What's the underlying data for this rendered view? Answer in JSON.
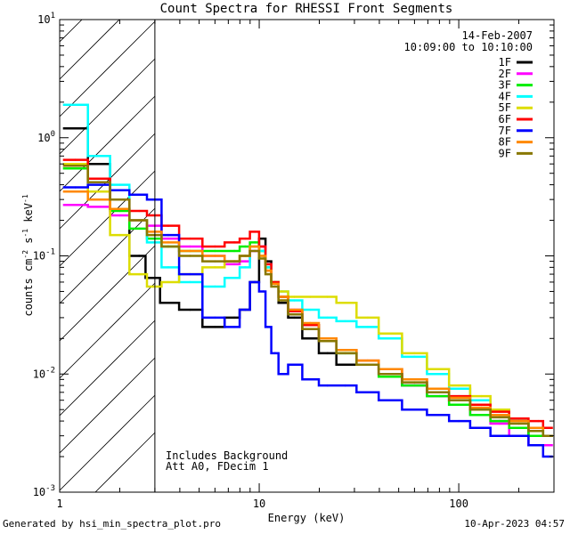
{
  "chart_data": {
    "type": "line",
    "title": "Count Spectra for RHESSI Front Segments",
    "xlabel": "Energy (keV)",
    "ylabel": "counts cm",
    "ylabel_parts": [
      "counts cm",
      "-2",
      " s",
      "-1",
      " keV",
      "-1"
    ],
    "x_scale": "log",
    "y_scale": "log",
    "xlim": [
      1,
      300
    ],
    "ylim": [
      0.001,
      10
    ],
    "x_ticks": [
      {
        "value": 1,
        "label": "1"
      },
      {
        "value": 10,
        "label": "10"
      },
      {
        "value": 100,
        "label": "100"
      }
    ],
    "y_ticks": [
      {
        "value": 0.001,
        "base": "10",
        "exp": "-3"
      },
      {
        "value": 0.01,
        "base": "10",
        "exp": "-2"
      },
      {
        "value": 0.1,
        "base": "10",
        "exp": "-1"
      },
      {
        "value": 1,
        "base": "10",
        "exp": "0"
      },
      {
        "value": 10,
        "base": "10",
        "exp": "1"
      }
    ],
    "date": "14-Feb-2007",
    "time_range": "10:09:00 to 10:10:00",
    "annotations": [
      "Includes Background",
      "Att A0, FDecim 1"
    ],
    "excluded_region_max_kev": 3,
    "series": [
      {
        "name": "1F",
        "color": "#000000",
        "x": [
          1.2,
          1.6,
          2,
          2.5,
          2.9,
          3.5,
          4.5,
          6,
          7.5,
          8.5,
          9.5,
          10.5,
          11,
          12,
          13,
          15,
          18,
          22,
          27,
          35,
          45,
          60,
          80,
          100,
          130,
          160,
          200,
          250,
          280
        ],
        "y": [
          1.2,
          0.6,
          0.25,
          0.1,
          0.065,
          0.04,
          0.035,
          0.025,
          0.03,
          0.035,
          0.06,
          0.14,
          0.09,
          0.06,
          0.04,
          0.03,
          0.02,
          0.015,
          0.012,
          0.012,
          0.01,
          0.008,
          0.007,
          0.006,
          0.005,
          0.004,
          0.004,
          0.003,
          0.003
        ]
      },
      {
        "name": "2F",
        "color": "#ff00ff",
        "x": [
          1.2,
          1.6,
          2,
          2.5,
          3,
          3.5,
          4.5,
          6,
          7.5,
          8.5,
          9.5,
          10.5,
          11,
          12,
          13,
          15,
          18,
          22,
          27,
          35,
          45,
          60,
          80,
          100,
          130,
          160,
          200,
          250,
          280
        ],
        "y": [
          0.27,
          0.26,
          0.22,
          0.2,
          0.18,
          0.14,
          0.12,
          0.1,
          0.085,
          0.09,
          0.11,
          0.12,
          0.085,
          0.06,
          0.045,
          0.035,
          0.026,
          0.02,
          0.016,
          0.012,
          0.01,
          0.008,
          0.0065,
          0.0055,
          0.0045,
          0.0038,
          0.003,
          0.0025,
          0.0025
        ]
      },
      {
        "name": "3F",
        "color": "#00ee00",
        "x": [
          1.2,
          1.6,
          2,
          2.5,
          3,
          3.5,
          4.5,
          6,
          7.5,
          8.5,
          9.5,
          10.5,
          11,
          12,
          13,
          15,
          18,
          22,
          27,
          35,
          45,
          60,
          80,
          100,
          130,
          160,
          200,
          250,
          280
        ],
        "y": [
          0.55,
          0.35,
          0.24,
          0.17,
          0.14,
          0.12,
          0.11,
          0.11,
          0.11,
          0.12,
          0.13,
          0.11,
          0.08,
          0.06,
          0.045,
          0.034,
          0.026,
          0.02,
          0.015,
          0.012,
          0.0095,
          0.008,
          0.0065,
          0.0055,
          0.0045,
          0.004,
          0.0035,
          0.003,
          0.003
        ]
      },
      {
        "name": "4F",
        "color": "#00ffff",
        "x": [
          1.2,
          1.6,
          2,
          2.5,
          3,
          3.5,
          4.5,
          6,
          7.5,
          8.5,
          9.5,
          10.5,
          11,
          12,
          13,
          15,
          18,
          22,
          27,
          35,
          45,
          60,
          80,
          100,
          130,
          160,
          200,
          250,
          280
        ],
        "y": [
          1.9,
          0.7,
          0.4,
          0.2,
          0.13,
          0.08,
          0.06,
          0.055,
          0.065,
          0.08,
          0.12,
          0.11,
          0.08,
          0.06,
          0.05,
          0.042,
          0.035,
          0.03,
          0.028,
          0.025,
          0.02,
          0.014,
          0.01,
          0.0075,
          0.006,
          0.005,
          0.004,
          0.0035,
          0.003
        ]
      },
      {
        "name": "5F",
        "color": "#dddd00",
        "x": [
          1.2,
          1.6,
          2,
          2.5,
          3,
          3.5,
          4.5,
          6,
          7.5,
          8.5,
          9.5,
          10.5,
          11,
          12,
          13,
          15,
          18,
          22,
          27,
          35,
          45,
          60,
          80,
          100,
          130,
          160,
          200,
          250,
          280
        ],
        "y": [
          0.6,
          0.35,
          0.15,
          0.07,
          0.055,
          0.06,
          0.07,
          0.08,
          0.09,
          0.1,
          0.12,
          0.1,
          0.075,
          0.06,
          0.05,
          0.045,
          0.045,
          0.045,
          0.04,
          0.03,
          0.022,
          0.015,
          0.011,
          0.008,
          0.0065,
          0.005,
          0.004,
          0.0035,
          0.003
        ]
      },
      {
        "name": "6F",
        "color": "#ff0000",
        "x": [
          1.2,
          1.6,
          2,
          2.5,
          3,
          3.5,
          4.5,
          6,
          7.5,
          8.5,
          9.5,
          10.5,
          11,
          12,
          13,
          15,
          18,
          22,
          27,
          35,
          45,
          60,
          80,
          100,
          130,
          160,
          200,
          250,
          280
        ],
        "y": [
          0.65,
          0.45,
          0.3,
          0.24,
          0.22,
          0.18,
          0.14,
          0.12,
          0.13,
          0.14,
          0.16,
          0.12,
          0.085,
          0.06,
          0.045,
          0.034,
          0.026,
          0.02,
          0.016,
          0.013,
          0.011,
          0.009,
          0.0075,
          0.0065,
          0.0055,
          0.0048,
          0.0042,
          0.004,
          0.0035
        ]
      },
      {
        "name": "7F",
        "color": "#0000ff",
        "x": [
          1.2,
          1.6,
          2,
          2.5,
          3,
          3.5,
          4.5,
          6,
          7.5,
          8.5,
          9.5,
          10.5,
          11,
          12,
          13,
          15,
          18,
          22,
          27,
          35,
          45,
          60,
          80,
          100,
          130,
          160,
          200,
          250,
          280
        ],
        "y": [
          0.38,
          0.4,
          0.36,
          0.33,
          0.3,
          0.15,
          0.07,
          0.03,
          0.025,
          0.035,
          0.06,
          0.05,
          0.025,
          0.015,
          0.01,
          0.012,
          0.009,
          0.008,
          0.008,
          0.007,
          0.006,
          0.005,
          0.0045,
          0.004,
          0.0035,
          0.003,
          0.003,
          0.0025,
          0.002
        ]
      },
      {
        "name": "8F",
        "color": "#ff8800",
        "x": [
          1.2,
          1.6,
          2,
          2.5,
          3,
          3.5,
          4.5,
          6,
          7.5,
          8.5,
          9.5,
          10.5,
          11,
          12,
          13,
          15,
          18,
          22,
          27,
          35,
          45,
          60,
          80,
          100,
          130,
          160,
          200,
          250,
          280
        ],
        "y": [
          0.35,
          0.3,
          0.25,
          0.2,
          0.16,
          0.13,
          0.11,
          0.1,
          0.09,
          0.1,
          0.12,
          0.1,
          0.075,
          0.058,
          0.045,
          0.035,
          0.027,
          0.02,
          0.016,
          0.013,
          0.011,
          0.009,
          0.0075,
          0.0063,
          0.0052,
          0.0045,
          0.004,
          0.0035,
          0.003
        ]
      },
      {
        "name": "9F",
        "color": "#887700",
        "x": [
          1.2,
          1.6,
          2,
          2.5,
          3,
          3.5,
          4.5,
          6,
          7.5,
          8.5,
          9.5,
          10.5,
          11,
          12,
          13,
          15,
          18,
          22,
          27,
          35,
          45,
          60,
          80,
          100,
          130,
          160,
          200,
          250,
          280
        ],
        "y": [
          0.58,
          0.42,
          0.3,
          0.2,
          0.15,
          0.12,
          0.1,
          0.09,
          0.09,
          0.1,
          0.11,
          0.095,
          0.07,
          0.055,
          0.042,
          0.032,
          0.024,
          0.019,
          0.015,
          0.012,
          0.01,
          0.0085,
          0.007,
          0.006,
          0.005,
          0.0043,
          0.0038,
          0.0033,
          0.003
        ]
      }
    ]
  },
  "footer": {
    "left": "Generated by hsi_min_spectra_plot.pro",
    "right": "10-Apr-2023 04:57"
  }
}
